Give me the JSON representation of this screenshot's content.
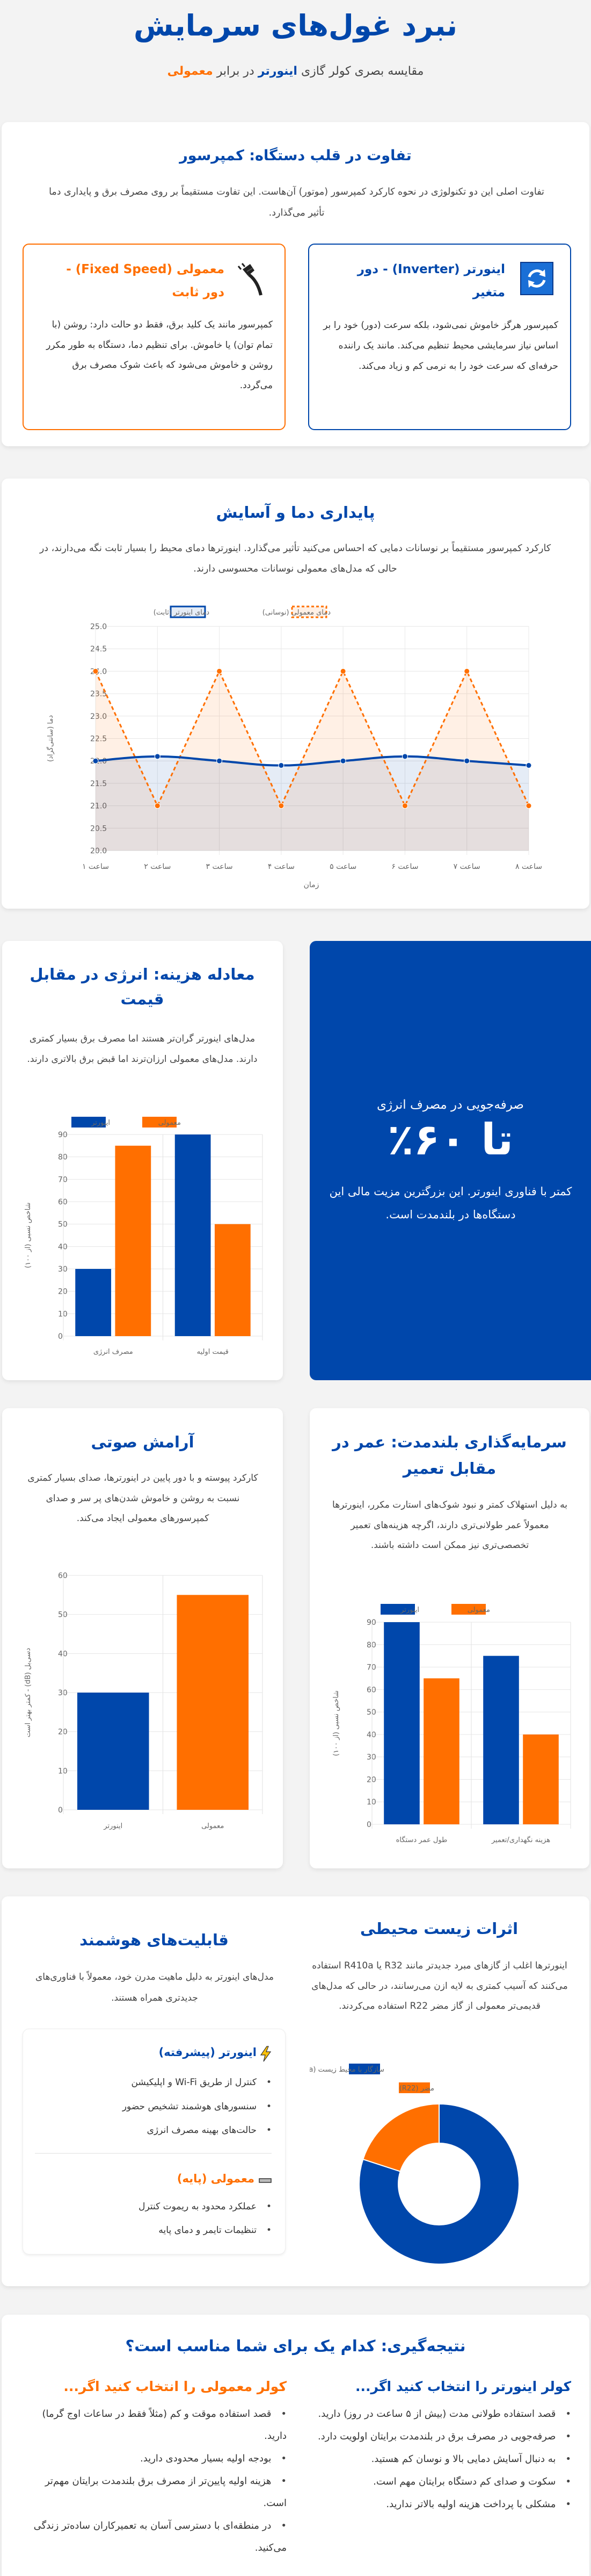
{
  "header": {
    "title": "نبرد غول‌های سرمایش",
    "subtitle_pre": "مقایسه بصری کولر گازی ",
    "subtitle_inverter": "اینورتر",
    "subtitle_mid": " در برابر ",
    "subtitle_normal": "معمولی"
  },
  "colors": {
    "inverter": "#0047AB",
    "normal": "#FF6F00",
    "background": "#f3f3f3"
  },
  "compressor": {
    "title": "تفاوت در قلب دستگاه: کمپرسور",
    "text": "تفاوت اصلی این دو تکنولوژی در نحوه کارکرد کمپرسور (موتور) آن‌هاست. این تفاوت مستقیماً بر روی مصرف برق و پایداری دما تأثیر می‌گذارد.",
    "inverter": {
      "icon": "rotating-arrows-icon",
      "title": "اینورتر (Inverter) - دور متغیر",
      "text": "کمپرسور هرگز خاموش نمی‌شود، بلکه سرعت (دور) خود را بر اساس نیاز سرمایشی محیط تنظیم می‌کند. مانند یک راننده حرفه‌ای که سرعت خود را به نرمی کم و زیاد می‌کند."
    },
    "normal": {
      "icon": "plug-icon",
      "title": "معمولی (Fixed Speed) - دور ثابت",
      "text": "کمپرسور مانند یک کلید برق، فقط دو حالت دارد: روشن (با تمام توان) یا خاموش. برای تنظیم دما، دستگاه به طور مکرر روشن و خاموش می‌شود که باعث شوک مصرف برق می‌گردد."
    }
  },
  "stability": {
    "title": "پایداری دما و آسایش",
    "text": "کارکرد کمپرسور مستقیماً بر نوسانات دمایی که احساس می‌کنید تأثیر می‌گذارد. اینورترها دمای محیط را بسیار ثابت نگه می‌دارند، در حالی که مدل‌های معمولی نوسانات محسوسی دارند."
  },
  "cost": {
    "title": "معادله هزینه: انرژی در مقابل قیمت",
    "text": "مدل‌های اینورتر گران‌تر هستند اما مصرف برق بسیار کمتری دارند. مدل‌های معمولی ارزان‌ترند اما قبض برق بالاتری دارند."
  },
  "savings": {
    "label": "صرفه‌جویی در مصرف انرژی",
    "value": "تا ۶۰٪",
    "text": "کمتر با فناوری اینورتر. این بزرگترین مزیت مالی این دستگاه‌ها در بلندمدت است."
  },
  "noise": {
    "title": "آرامش صوتی",
    "text": "کارکرد پیوسته و با دور پایین در اینورترها، صدای بسیار کمتری نسبت به روشن و خاموش شدن‌های پر سر و صدای کمپرسورهای معمولی ایجاد می‌کند."
  },
  "investment": {
    "title": "سرمایه‌گذاری بلندمدت: عمر در مقابل تعمیر",
    "text": "به دلیل استهلاک کمتر و نبود شوک‌های استارت مکرر، اینورترها معمولاً عمر طولانی‌تری دارند، اگرچه هزینه‌های تعمیر تخصصی‌تری نیز ممکن است داشته باشند."
  },
  "environment": {
    "title": "اثرات زیست محیطی",
    "text": "اینورترها اغلب از گازهای مبرد جدیدتر مانند R32 یا R410a استفاده می‌کنند که آسیب کمتری به لایه ازن می‌رسانند، در حالی که مدل‌های قدیمی‌تر معمولی از گاز مضر R22 استفاده می‌کردند."
  },
  "smart": {
    "title": "قابلیت‌های هوشمند",
    "text": "مدل‌های اینورتر به دلیل ماهیت مدرن خود، معمولاً با فناوری‌های جدیدتری همراه هستند.",
    "inverter": {
      "icon": "lightning-icon",
      "title": "اینورتر (پیشرفته)",
      "items": [
        "کنترل از طریق Wi-Fi و اپلیکیشن",
        "سنسورهای هوشمند تشخیص حضور",
        "حالت‌های بهینه مصرف انرژی"
      ]
    },
    "normal": {
      "icon": "minus-icon",
      "title": "معمولی (پایه)",
      "items": [
        "عملکرد محدود به ریموت کنترل",
        "تنظیمات تایمر و دمای پایه"
      ]
    }
  },
  "conclusion": {
    "title": "نتیجه‌گیری: کدام یک برای شما مناسب است؟",
    "inverter": {
      "title": "کولر اینورتر را انتخاب کنید اگر...",
      "items": [
        "قصد استفاده طولانی مدت (بیش از ۵ ساعت در روز) دارید.",
        "صرفه‌جویی در مصرف برق در بلندمدت برایتان اولویت دارد.",
        "به دنبال آسایش دمایی بالا و نوسان کم هستید.",
        "سکوت و صدای کم دستگاه برایتان مهم است.",
        "مشکلی با پرداخت هزینه اولیه بالاتر ندارید."
      ]
    },
    "normal": {
      "title": "کولر معمولی را انتخاب کنید اگر...",
      "items": [
        "قصد استفاده موقت و کم (مثلاً فقط در ساعات اوج گرما) دارید.",
        "بودجه اولیه بسیار محدودی دارید.",
        "هزینه اولیه پایین‌تر از مصرف برق بلندمدت برایتان مهم‌تر است.",
        "در منطقه‌ای با دسترسی آسان به تعمیرکاران ساده‌تر زندگی می‌کنید."
      ]
    }
  },
  "chart_data": [
    {
      "type": "line",
      "title": "",
      "xlabel": "زمان",
      "ylabel": "دما (سانتی‌گراد)",
      "ylim": [
        20,
        25
      ],
      "ytick_step": 0.5,
      "grid": true,
      "legend": "top",
      "categories": [
        "ساعت ۱",
        "ساعت ۲",
        "ساعت ۳",
        "ساعت ۴",
        "ساعت ۵",
        "ساعت ۶",
        "ساعت ۷",
        "ساعت ۸"
      ],
      "series": [
        {
          "name": "دمای معمولی (نوسانی)",
          "values": [
            24,
            21,
            24,
            21,
            24,
            21,
            24,
            21
          ],
          "color": "#FF6F00",
          "style": "dashed"
        },
        {
          "name": "دمای اینورتر (ثابت)",
          "values": [
            22,
            22.1,
            22,
            21.9,
            22,
            22.1,
            22,
            21.9
          ],
          "color": "#0047AB",
          "style": "solid"
        }
      ]
    },
    {
      "type": "bar",
      "title": "",
      "xlabel": "",
      "ylabel": "شاخص نسبی (از ۱۰۰)",
      "ylim": [
        0,
        90
      ],
      "ytick_step": 10,
      "grid": true,
      "legend": "top",
      "categories": [
        "مصرف انرژی",
        "قیمت اولیه"
      ],
      "series": [
        {
          "name": "اینورتر",
          "values": [
            30,
            90
          ],
          "color": "#0047AB"
        },
        {
          "name": "معمولی",
          "values": [
            85,
            50
          ],
          "color": "#FF6F00"
        }
      ]
    },
    {
      "type": "bar",
      "title": "",
      "xlabel": "",
      "ylabel": "دسی‌بل (dB) - کمتر بهتر است",
      "ylim": [
        0,
        60
      ],
      "ytick_step": 10,
      "grid": true,
      "legend": "none",
      "categories": [
        "اینورتر",
        "معمولی"
      ],
      "series": [
        {
          "values": [
            30,
            55
          ],
          "colors": [
            "#0047AB",
            "#FF6F00"
          ]
        }
      ]
    },
    {
      "type": "bar",
      "title": "",
      "xlabel": "",
      "ylabel": "شاخص نسبی (از ۱۰۰)",
      "ylim": [
        0,
        90
      ],
      "ytick_step": 10,
      "grid": true,
      "legend": "top",
      "categories": [
        "طول عمر دستگاه",
        "هزینه نگهداری/تعمیر"
      ],
      "series": [
        {
          "name": "اینورتر",
          "values": [
            90,
            75
          ],
          "color": "#0047AB"
        },
        {
          "name": "معمولی",
          "values": [
            65,
            40
          ],
          "color": "#FF6F00"
        }
      ]
    },
    {
      "type": "pie",
      "title": "",
      "donut": true,
      "legend": "top",
      "labels": [
        "سازگار با محیط زیست (R32/R410a)",
        "مضر (R22)"
      ],
      "values": [
        80,
        20
      ],
      "colors": [
        "#0047AB",
        "#FF6F00"
      ]
    }
  ]
}
